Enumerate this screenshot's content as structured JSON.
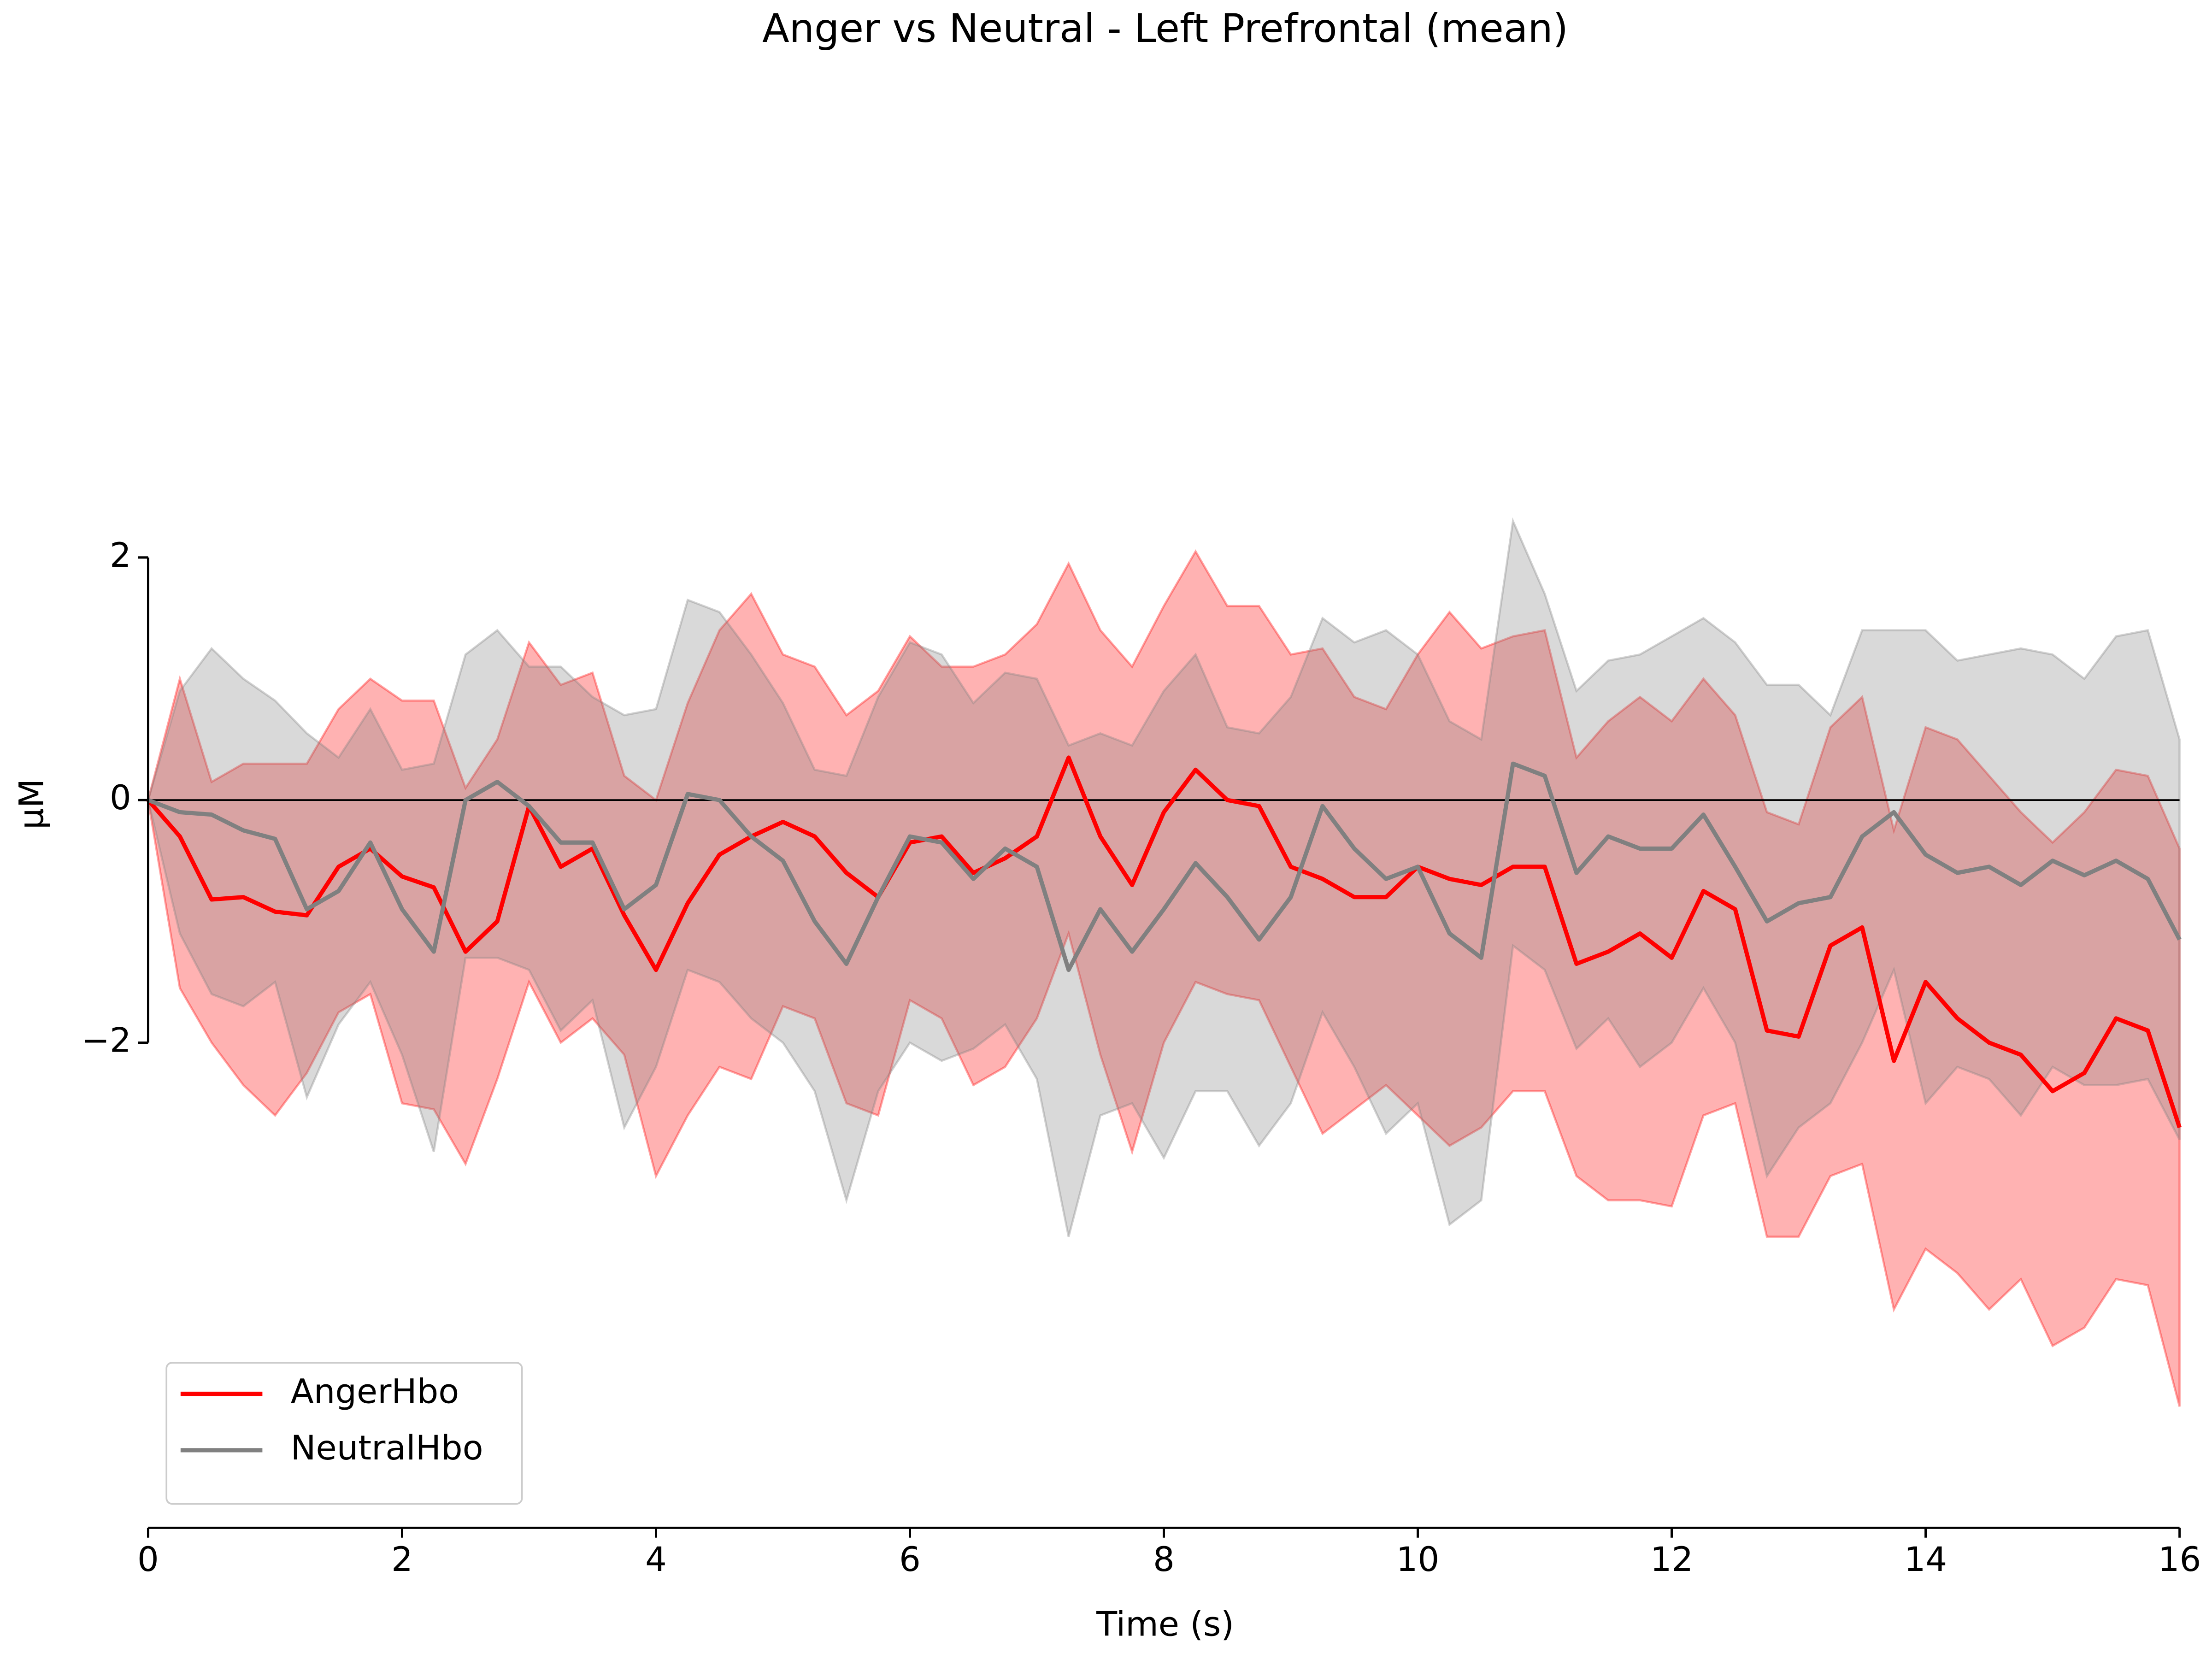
{
  "chart_data": {
    "type": "line",
    "title": "Anger vs Neutral - Left Prefrontal (mean)",
    "xlabel": "Time (s)",
    "ylabel": "µM",
    "x": [
      0,
      0.25,
      0.5,
      0.75,
      1,
      1.25,
      1.5,
      1.75,
      2,
      2.25,
      2.5,
      2.75,
      3,
      3.25,
      3.5,
      3.75,
      4,
      4.25,
      4.5,
      4.75,
      5,
      5.25,
      5.5,
      5.75,
      6,
      6.25,
      6.5,
      6.75,
      7,
      7.25,
      7.5,
      7.75,
      8,
      8.25,
      8.5,
      8.75,
      9,
      9.25,
      9.5,
      9.75,
      10,
      10.25,
      10.5,
      10.75,
      11,
      11.25,
      11.5,
      11.75,
      12,
      12.25,
      12.5,
      12.75,
      13,
      13.25,
      13.5,
      13.75,
      14,
      14.25,
      14.5,
      14.75,
      15,
      15.25,
      15.5,
      15.75,
      16
    ],
    "xlim": [
      0,
      16
    ],
    "xticks": [
      0,
      2,
      4,
      6,
      8,
      10,
      12,
      14,
      16
    ],
    "ylim": [
      -6,
      2.7
    ],
    "yticks": [
      {
        "value": -2,
        "label": "−2"
      },
      0,
      2
    ],
    "hline": 0,
    "legend": "lower left",
    "series": [
      {
        "name": "AngerHbo",
        "color": "#ff0000",
        "values": [
          0,
          -0.3,
          -0.82,
          -0.8,
          -0.92,
          -0.95,
          -0.55,
          -0.4,
          -0.63,
          -0.72,
          -1.25,
          -1,
          -0.05,
          -0.55,
          -0.4,
          -0.95,
          -1.4,
          -0.85,
          -0.45,
          -0.3,
          -0.18,
          -0.3,
          -0.6,
          -0.8,
          -0.35,
          -0.3,
          -0.6,
          -0.48,
          -0.3,
          0.35,
          -0.3,
          -0.7,
          -0.1,
          0.25,
          0,
          -0.05,
          -0.55,
          -0.65,
          -0.8,
          -0.8,
          -0.55,
          -0.65,
          -0.7,
          -0.55,
          -0.55,
          -1.35,
          -1.25,
          -1.1,
          -1.3,
          -0.75,
          -0.9,
          -1.9,
          -1.95,
          -1.2,
          -1.05,
          -2.15,
          -1.5,
          -1.8,
          -2,
          -2.1,
          -2.4,
          -2.25,
          -1.8,
          -1.9,
          -2.7
        ],
        "upper": [
          0,
          1,
          0.15,
          0.3,
          0.3,
          0.3,
          0.75,
          1,
          0.82,
          0.82,
          0.1,
          0.5,
          1.3,
          0.95,
          1.05,
          0.2,
          0,
          0.8,
          1.4,
          1.7,
          1.2,
          1.1,
          0.7,
          0.9,
          1.35,
          1.1,
          1.1,
          1.2,
          1.45,
          1.95,
          1.4,
          1.1,
          1.6,
          2.05,
          1.6,
          1.6,
          1.2,
          1.25,
          0.85,
          0.75,
          1.2,
          1.55,
          1.25,
          1.35,
          1.4,
          0.35,
          0.65,
          0.85,
          0.65,
          1,
          0.7,
          -0.1,
          -0.2,
          0.6,
          0.85,
          -0.25,
          0.6,
          0.5,
          0.2,
          -0.1,
          -0.35,
          -0.1,
          0.25,
          0.2,
          -0.4
        ],
        "lower": [
          0,
          -1.55,
          -2,
          -2.35,
          -2.6,
          -2.25,
          -1.75,
          -1.6,
          -2.5,
          -2.55,
          -3,
          -2.3,
          -1.5,
          -2,
          -1.8,
          -2.1,
          -3.1,
          -2.6,
          -2.2,
          -2.3,
          -1.7,
          -1.8,
          -2.5,
          -2.6,
          -1.65,
          -1.8,
          -2.35,
          -2.2,
          -1.8,
          -1.1,
          -2.1,
          -2.9,
          -2,
          -1.5,
          -1.6,
          -1.65,
          -2.2,
          -2.75,
          -2.55,
          -2.35,
          -2.6,
          -2.85,
          -2.7,
          -2.4,
          -2.4,
          -3.1,
          -3.3,
          -3.3,
          -3.35,
          -2.6,
          -2.5,
          -3.6,
          -3.6,
          -3.1,
          -3,
          -4.2,
          -3.7,
          -3.9,
          -4.2,
          -3.95,
          -4.5,
          -4.35,
          -3.95,
          -4,
          -5
        ]
      },
      {
        "name": "NeutralHbo",
        "color": "#808080",
        "values": [
          0,
          -0.1,
          -0.12,
          -0.25,
          -0.32,
          -0.9,
          -0.75,
          -0.35,
          -0.9,
          -1.25,
          0,
          0.15,
          -0.05,
          -0.35,
          -0.35,
          -0.9,
          -0.7,
          0.05,
          0,
          -0.3,
          -0.5,
          -1,
          -1.35,
          -0.8,
          -0.3,
          -0.35,
          -0.65,
          -0.4,
          -0.55,
          -1.4,
          -0.9,
          -1.25,
          -0.9,
          -0.52,
          -0.8,
          -1.15,
          -0.8,
          -0.05,
          -0.4,
          -0.65,
          -0.55,
          -1.1,
          -1.3,
          0.3,
          0.2,
          -0.6,
          -0.3,
          -0.4,
          -0.4,
          -0.12,
          -0.55,
          -1,
          -0.85,
          -0.8,
          -0.3,
          -0.1,
          -0.45,
          -0.6,
          -0.55,
          -0.7,
          -0.5,
          -0.62,
          -0.5,
          -0.65,
          -1.15
        ],
        "upper": [
          0,
          0.9,
          1.25,
          1,
          0.82,
          0.55,
          0.35,
          0.75,
          0.25,
          0.3,
          1.2,
          1.4,
          1.1,
          1.1,
          0.85,
          0.7,
          0.75,
          1.65,
          1.55,
          1.2,
          0.8,
          0.25,
          0.2,
          0.85,
          1.3,
          1.2,
          0.8,
          1.05,
          1,
          0.45,
          0.55,
          0.45,
          0.9,
          1.2,
          0.6,
          0.55,
          0.85,
          1.5,
          1.3,
          1.4,
          1.2,
          0.65,
          0.5,
          2.3,
          1.7,
          0.9,
          1.15,
          1.2,
          1.35,
          1.5,
          1.3,
          0.95,
          0.95,
          0.7,
          1.4,
          1.4,
          1.4,
          1.15,
          1.2,
          1.25,
          1.2,
          1,
          1.35,
          1.4,
          0.5
        ],
        "lower": [
          0,
          -1.1,
          -1.6,
          -1.7,
          -1.5,
          -2.45,
          -1.85,
          -1.5,
          -2.1,
          -2.9,
          -1.3,
          -1.3,
          -1.4,
          -1.9,
          -1.65,
          -2.7,
          -2.2,
          -1.4,
          -1.5,
          -1.8,
          -2,
          -2.4,
          -3.3,
          -2.4,
          -2,
          -2.15,
          -2.05,
          -1.85,
          -2.3,
          -3.6,
          -2.6,
          -2.5,
          -2.95,
          -2.4,
          -2.4,
          -2.85,
          -2.5,
          -1.75,
          -2.2,
          -2.75,
          -2.5,
          -3.5,
          -3.3,
          -1.2,
          -1.4,
          -2.05,
          -1.8,
          -2.2,
          -2,
          -1.55,
          -2,
          -3.1,
          -2.7,
          -2.5,
          -2,
          -1.4,
          -2.5,
          -2.2,
          -2.3,
          -2.6,
          -2.2,
          -2.35,
          -2.35,
          -2.3,
          -2.8
        ]
      }
    ]
  }
}
